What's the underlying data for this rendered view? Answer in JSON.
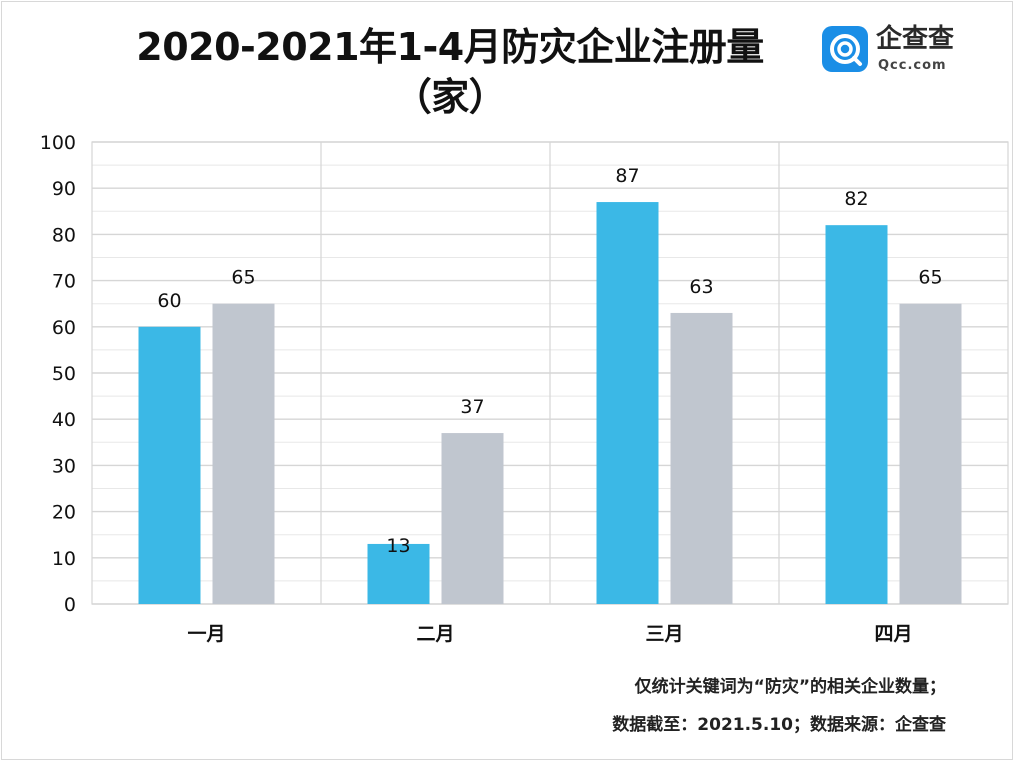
{
  "title_line1": "2020-2021年1-4月防灾企业注册量",
  "title_line2": "（家）",
  "logo": {
    "name": "企查查",
    "domain": "Qcc.com",
    "icon": "qcc-logo-icon",
    "color": "#1a8ee6"
  },
  "footnotes": [
    "仅统计关键词为“防灾”的相关企业数量；",
    "数据截至：2021.5.10；数据来源：企查查"
  ],
  "colors": {
    "series1": "#3bb8e6",
    "series2": "#c0c6cf",
    "grid": "#d6d6d6"
  },
  "chart_data": {
    "type": "bar",
    "categories": [
      "一月",
      "二月",
      "三月",
      "四月"
    ],
    "series": [
      {
        "values": [
          60,
          13,
          87,
          82
        ]
      },
      {
        "values": [
          65,
          37,
          63,
          65
        ]
      }
    ],
    "ylim": [
      0,
      100
    ],
    "yticks": [
      "0",
      "10",
      "20",
      "30",
      "40",
      "50",
      "60",
      "70",
      "80",
      "90",
      "100"
    ],
    "grid": true,
    "data_labels": true
  }
}
